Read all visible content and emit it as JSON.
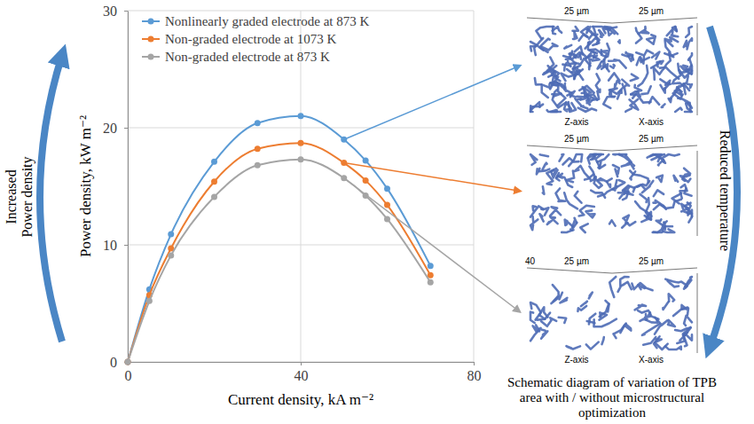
{
  "chart_data": {
    "type": "line",
    "x_label": "Current density, kA m⁻²",
    "y_label": "Power density, kW m⁻²",
    "x": [
      0,
      5,
      10,
      20,
      30,
      40,
      50,
      55,
      60,
      70
    ],
    "series": [
      {
        "name": "Nonlinearly graded electrode at 873 K",
        "color": "#5b9bd5",
        "values": [
          0,
          6.2,
          10.9,
          17.1,
          20.4,
          21.0,
          19.0,
          17.2,
          14.8,
          8.2
        ]
      },
      {
        "name": "Non-graded electrode at 1073 K",
        "color": "#ed7d31",
        "values": [
          0,
          5.7,
          9.7,
          15.4,
          18.2,
          18.7,
          17.0,
          15.5,
          13.4,
          7.4
        ]
      },
      {
        "name": "Non-graded electrode at 873 K",
        "color": "#a5a5a5",
        "values": [
          0,
          5.2,
          9.1,
          14.1,
          16.8,
          17.3,
          15.7,
          14.2,
          12.2,
          6.8
        ]
      }
    ],
    "xlim": [
      0,
      80
    ],
    "xticks": [
      0,
      40,
      80
    ],
    "ylim": [
      0,
      30
    ],
    "yticks": [
      0,
      10,
      20,
      30
    ],
    "grid": true,
    "legend": "top-left",
    "marker": "circle",
    "line_style": "solid"
  },
  "left_label": [
    "Increased",
    "Power density"
  ],
  "right_label": "Reduced temperature",
  "caption": "Schematic diagram of variation of TPB area with / without microstructural optimization",
  "structure_images": [
    {
      "dimension_labels": [
        "25 µm",
        "25 µm"
      ],
      "axis_labels": [
        "Z-axis",
        "X-axis"
      ]
    },
    {
      "dimension_labels": [
        "25 µm",
        "25 µm"
      ]
    },
    {
      "dimension_labels": [
        "25 µm",
        "25 µm"
      ],
      "axis_labels": [
        "Z-axis",
        "X-axis"
      ],
      "corner_label": "40"
    }
  ]
}
